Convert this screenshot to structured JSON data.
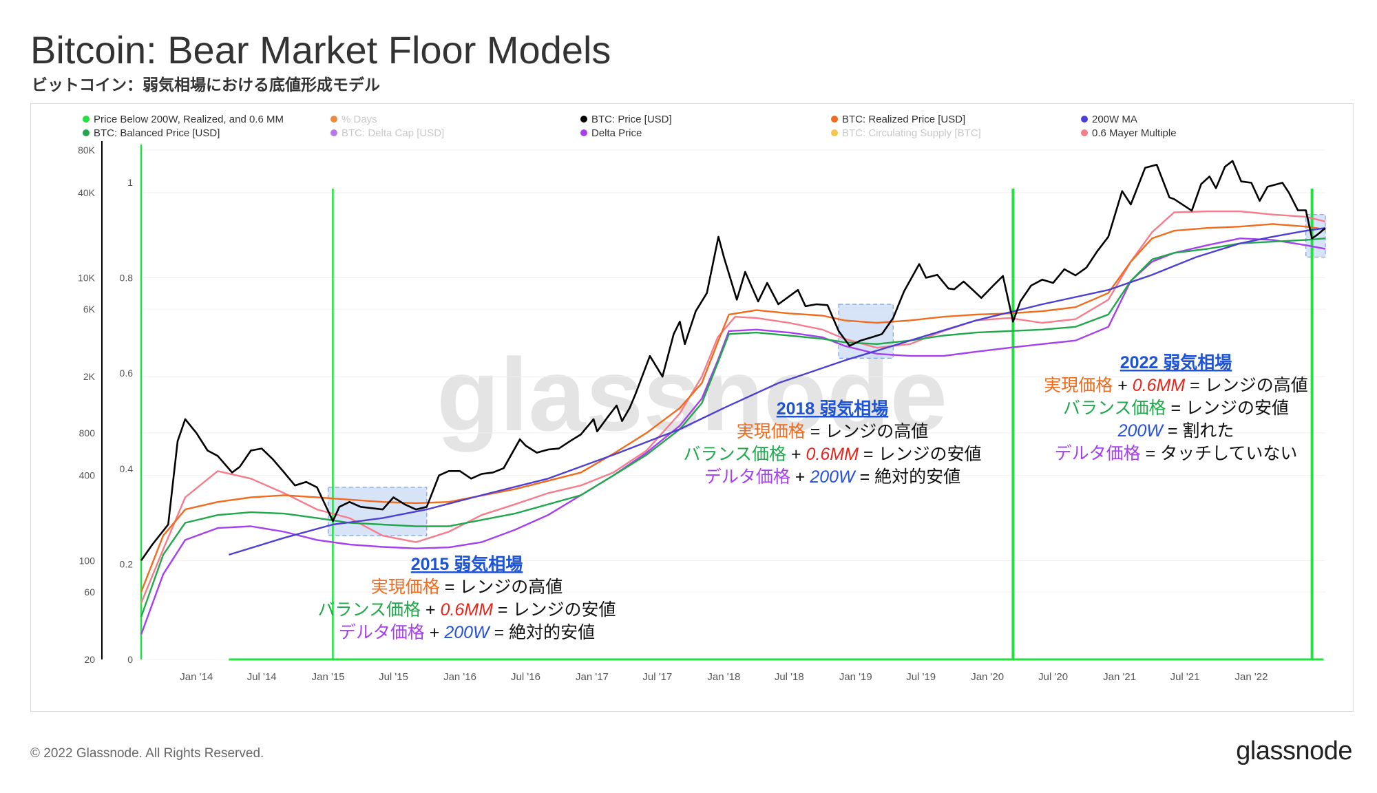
{
  "header": {
    "title": "Bitcoin: Bear Market Floor Models",
    "subtitle": "ビットコイン：弱気相場における底値形成モデル"
  },
  "footer": {
    "copyright": "© 2022 Glassnode. All Rights Reserved.",
    "brand": "glassnode"
  },
  "watermark": "glassnode",
  "colors": {
    "price": "#000000",
    "realized": "#f26a1b",
    "balanced": "#1fa84a",
    "ma200w": "#4b3fd6",
    "delta": "#a53ff0",
    "mayer06": "#f77b8a",
    "signal": "#22e041",
    "days": "#f0883e",
    "delta_cap": "#b77be6",
    "supply": "#f5c64c",
    "highlight": "#c9dbf5",
    "red_text": "#e8241a",
    "blue_text": "#2450e0",
    "head_blue": "#1e53d6"
  },
  "legend": [
    {
      "label": "Price Below 200W, Realized, and 0.6 MM",
      "color": "#22e041",
      "muted": false
    },
    {
      "label": "% Days",
      "color": "#f0883e",
      "muted": true
    },
    {
      "label": "BTC: Price [USD]",
      "color": "#000000",
      "muted": false
    },
    {
      "label": "BTC: Realized Price [USD]",
      "color": "#f26a1b",
      "muted": false
    },
    {
      "label": "200W MA",
      "color": "#4b3fd6",
      "muted": false
    },
    {
      "label": "BTC: Balanced Price [USD]",
      "color": "#1fa84a",
      "muted": false
    },
    {
      "label": "BTC: Delta Cap [USD]",
      "color": "#b77be6",
      "muted": true
    },
    {
      "label": "Delta Price",
      "color": "#a53ff0",
      "muted": false
    },
    {
      "label": "BTC: Circulating Supply [BTC]",
      "color": "#f5c64c",
      "muted": true
    },
    {
      "label": "0.6 Mayer Multiple",
      "color": "#f77b8a",
      "muted": false
    }
  ],
  "chart_data": {
    "type": "line",
    "y_scale": "log",
    "ylim": [
      20,
      80000
    ],
    "price_ticks": [
      "80K",
      "40K",
      "10K",
      "6K",
      "2K",
      "800",
      "400",
      "100",
      "60",
      "20"
    ],
    "price_tick_values": [
      80000,
      40000,
      10000,
      6000,
      2000,
      800,
      400,
      100,
      60,
      20
    ],
    "ratio_ticks": [
      "1",
      "0.8",
      "0.6",
      "0.4",
      "0.2",
      "0"
    ],
    "ratio_tick_values": [
      1,
      0.8,
      0.6,
      0.4,
      0.2,
      0
    ],
    "x_ticks": [
      "Jan '14",
      "Jul '14",
      "Jan '15",
      "Jul '15",
      "Jan '16",
      "Jul '16",
      "Jan '17",
      "Jul '17",
      "Jan '18",
      "Jul '18",
      "Jan '19",
      "Jul '19",
      "Jan '20",
      "Jul '20",
      "Jan '21",
      "Jul '21",
      "Jan '22"
    ],
    "x_tick_dates": [
      "2014-01-01",
      "2014-07-01",
      "2015-01-01",
      "2015-07-01",
      "2016-01-01",
      "2016-07-01",
      "2017-01-01",
      "2017-07-01",
      "2018-01-01",
      "2018-07-01",
      "2019-01-01",
      "2019-07-01",
      "2020-01-01",
      "2020-07-01",
      "2021-01-01",
      "2021-07-01",
      "2022-01-01"
    ],
    "x_range": [
      "2013-08-01",
      "2022-07-25"
    ],
    "signal_dates": [
      "2013-08-01",
      "2015-01-14",
      "2020-03-12",
      "2022-06-18"
    ],
    "highlight_zones": [
      {
        "x": [
          "2015-01-01",
          "2015-10-01"
        ],
        "y": [
          150,
          330
        ]
      },
      {
        "x": [
          "2018-11-15",
          "2019-04-15"
        ],
        "y": [
          2700,
          6500
        ]
      },
      {
        "x": [
          "2022-06-01",
          "2022-07-25"
        ],
        "y": [
          14000,
          28000
        ]
      }
    ],
    "series": [
      {
        "name": "BTC: Price [USD]",
        "key": "price",
        "x": [
          "2013-08-01",
          "2013-09-01",
          "2013-10-15",
          "2013-11-10",
          "2013-12-01",
          "2014-01-01",
          "2014-02-01",
          "2014-03-01",
          "2014-04-10",
          "2014-05-01",
          "2014-06-01",
          "2014-07-01",
          "2014-08-01",
          "2014-09-01",
          "2014-10-01",
          "2014-11-01",
          "2014-12-01",
          "2015-01-14",
          "2015-02-01",
          "2015-03-01",
          "2015-04-01",
          "2015-05-01",
          "2015-06-01",
          "2015-07-01",
          "2015-08-01",
          "2015-09-01",
          "2015-10-01",
          "2015-11-04",
          "2015-12-01",
          "2016-01-01",
          "2016-02-01",
          "2016-03-01",
          "2016-04-01",
          "2016-05-01",
          "2016-06-15",
          "2016-07-01",
          "2016-08-01",
          "2016-09-01",
          "2016-10-01",
          "2016-11-01",
          "2016-12-01",
          "2017-01-05",
          "2017-01-15",
          "2017-02-15",
          "2017-03-10",
          "2017-03-25",
          "2017-04-15",
          "2017-05-01",
          "2017-06-10",
          "2017-07-15",
          "2017-08-15",
          "2017-09-01",
          "2017-09-15",
          "2017-10-15",
          "2017-11-15",
          "2017-12-17",
          "2018-01-01",
          "2018-02-06",
          "2018-03-01",
          "2018-04-06",
          "2018-05-01",
          "2018-06-01",
          "2018-07-25",
          "2018-08-15",
          "2018-09-15",
          "2018-10-15",
          "2018-11-15",
          "2018-12-15",
          "2019-01-15",
          "2019-02-15",
          "2019-03-15",
          "2019-04-15",
          "2019-05-15",
          "2019-06-26",
          "2019-07-15",
          "2019-08-15",
          "2019-09-15",
          "2019-10-01",
          "2019-10-27",
          "2019-11-15",
          "2019-12-15",
          "2020-01-15",
          "2020-02-13",
          "2020-03-12",
          "2020-04-01",
          "2020-05-01",
          "2020-06-01",
          "2020-07-01",
          "2020-08-01",
          "2020-09-01",
          "2020-10-01",
          "2020-11-01",
          "2020-12-01",
          "2021-01-08",
          "2021-02-01",
          "2021-03-13",
          "2021-04-14",
          "2021-05-19",
          "2021-06-01",
          "2021-07-20",
          "2021-08-15",
          "2021-09-07",
          "2021-09-25",
          "2021-10-20",
          "2021-11-10",
          "2021-12-04",
          "2022-01-01",
          "2022-01-24",
          "2022-02-15",
          "2022-03-28",
          "2022-04-15",
          "2022-05-10",
          "2022-06-01",
          "2022-06-18",
          "2022-07-01",
          "2022-07-25"
        ],
        "values": [
          100,
          130,
          180,
          700,
          1000,
          800,
          600,
          550,
          420,
          460,
          600,
          620,
          520,
          420,
          340,
          360,
          330,
          190,
          240,
          260,
          240,
          235,
          230,
          280,
          250,
          230,
          240,
          400,
          430,
          430,
          380,
          410,
          420,
          450,
          720,
          650,
          580,
          610,
          620,
          700,
          780,
          1000,
          820,
          1050,
          1250,
          970,
          1200,
          1500,
          2800,
          2000,
          4000,
          4900,
          3400,
          5800,
          7800,
          19500,
          14000,
          7000,
          11000,
          6800,
          9200,
          6500,
          8200,
          6300,
          6500,
          6400,
          4200,
          3300,
          3600,
          3800,
          4000,
          5200,
          8000,
          12500,
          10000,
          10500,
          8400,
          8300,
          9400,
          8500,
          7200,
          8700,
          10300,
          4900,
          6800,
          8800,
          9700,
          9200,
          11500,
          10400,
          11800,
          15500,
          19500,
          41000,
          33000,
          60000,
          63000,
          37000,
          36000,
          29800,
          46000,
          52000,
          43000,
          61000,
          67000,
          48000,
          47000,
          35000,
          44000,
          47000,
          40000,
          30000,
          30000,
          19000,
          20000,
          22500
        ]
      },
      {
        "name": "BTC: Realized Price [USD]",
        "key": "realized",
        "x": [
          "2013-08-01",
          "2013-10-01",
          "2013-12-01",
          "2014-03-01",
          "2014-06-01",
          "2014-09-01",
          "2014-12-01",
          "2015-03-01",
          "2015-06-01",
          "2015-09-01",
          "2015-12-01",
          "2016-06-01",
          "2016-12-01",
          "2017-03-01",
          "2017-06-01",
          "2017-09-01",
          "2017-11-01",
          "2017-12-15",
          "2018-01-15",
          "2018-04-01",
          "2018-07-01",
          "2018-10-01",
          "2018-12-01",
          "2019-03-01",
          "2019-06-01",
          "2019-09-01",
          "2019-12-01",
          "2020-03-01",
          "2020-06-01",
          "2020-09-01",
          "2020-12-01",
          "2021-02-01",
          "2021-04-01",
          "2021-06-01",
          "2021-09-01",
          "2021-12-01",
          "2022-03-01",
          "2022-06-01",
          "2022-07-25"
        ],
        "values": [
          60,
          150,
          230,
          260,
          280,
          290,
          280,
          270,
          260,
          255,
          260,
          320,
          420,
          570,
          800,
          1200,
          1800,
          3500,
          5500,
          5900,
          5600,
          5400,
          5000,
          4800,
          5000,
          5300,
          5500,
          5600,
          5800,
          6200,
          7800,
          13000,
          19000,
          21500,
          22500,
          23000,
          24000,
          23000,
          22000
        ]
      },
      {
        "name": "BTC: Balanced Price [USD]",
        "key": "balanced",
        "x": [
          "2013-08-01",
          "2013-10-01",
          "2013-12-01",
          "2014-03-01",
          "2014-06-01",
          "2014-09-01",
          "2014-12-01",
          "2015-03-01",
          "2015-06-01",
          "2015-09-01",
          "2015-12-01",
          "2016-06-01",
          "2016-12-01",
          "2017-03-01",
          "2017-06-01",
          "2017-09-01",
          "2017-11-01",
          "2017-12-15",
          "2018-01-15",
          "2018-04-01",
          "2018-07-01",
          "2018-10-01",
          "2018-12-01",
          "2019-03-01",
          "2019-06-01",
          "2019-09-01",
          "2019-12-01",
          "2020-03-01",
          "2020-06-01",
          "2020-09-01",
          "2020-12-01",
          "2021-02-01",
          "2021-04-01",
          "2021-06-01",
          "2021-09-01",
          "2021-12-01",
          "2022-03-01",
          "2022-06-01",
          "2022-07-25"
        ],
        "values": [
          40,
          110,
          185,
          210,
          220,
          215,
          200,
          185,
          180,
          175,
          175,
          215,
          290,
          400,
          560,
          850,
          1300,
          2500,
          4000,
          4100,
          3900,
          3700,
          3500,
          3400,
          3600,
          3900,
          4100,
          4200,
          4300,
          4500,
          5500,
          9500,
          13500,
          15000,
          16000,
          17500,
          18000,
          18500,
          19000
        ]
      },
      {
        "name": "200W MA",
        "key": "ma200w",
        "x": [
          "2014-04-01",
          "2014-09-01",
          "2015-01-14",
          "2015-06-01",
          "2015-10-01",
          "2016-03-01",
          "2016-09-01",
          "2017-03-01",
          "2017-09-01",
          "2018-01-01",
          "2018-06-01",
          "2018-12-01",
          "2019-06-01",
          "2019-12-01",
          "2020-06-01",
          "2020-12-01",
          "2021-04-01",
          "2021-08-01",
          "2021-12-01",
          "2022-03-01",
          "2022-06-01",
          "2022-07-25"
        ],
        "values": [
          110,
          145,
          180,
          200,
          230,
          290,
          380,
          560,
          850,
          1200,
          1800,
          2600,
          3600,
          5000,
          6500,
          8200,
          10500,
          14000,
          17500,
          19500,
          21500,
          22500
        ]
      },
      {
        "name": "Delta Price",
        "key": "delta",
        "x": [
          "2013-08-01",
          "2013-10-01",
          "2013-12-01",
          "2014-03-01",
          "2014-06-01",
          "2014-09-01",
          "2014-12-01",
          "2015-03-01",
          "2015-06-01",
          "2015-09-01",
          "2015-12-01",
          "2016-03-01",
          "2016-06-01",
          "2016-09-01",
          "2016-12-01",
          "2017-03-01",
          "2017-06-01",
          "2017-09-01",
          "2017-11-01",
          "2017-12-15",
          "2018-01-15",
          "2018-04-01",
          "2018-07-01",
          "2018-10-01",
          "2018-12-01",
          "2019-03-01",
          "2019-06-01",
          "2019-09-01",
          "2019-12-01",
          "2020-03-01",
          "2020-06-01",
          "2020-09-01",
          "2020-12-01",
          "2021-02-01",
          "2021-04-01",
          "2021-06-01",
          "2021-09-01",
          "2021-12-01",
          "2022-03-01",
          "2022-06-01",
          "2022-07-25"
        ],
        "values": [
          30,
          80,
          140,
          170,
          175,
          160,
          140,
          130,
          125,
          122,
          124,
          135,
          165,
          210,
          290,
          400,
          580,
          900,
          1400,
          2600,
          4200,
          4300,
          4100,
          3800,
          3300,
          2900,
          2800,
          2800,
          3000,
          3200,
          3400,
          3600,
          4500,
          9500,
          13000,
          15000,
          17000,
          19000,
          18500,
          17000,
          16000
        ]
      },
      {
        "name": "0.6 Mayer Multiple",
        "key": "mayer06",
        "x": [
          "2013-08-01",
          "2013-10-01",
          "2013-12-01",
          "2014-03-01",
          "2014-06-01",
          "2014-09-01",
          "2014-12-01",
          "2015-03-01",
          "2015-06-01",
          "2015-09-01",
          "2015-12-01",
          "2016-03-01",
          "2016-06-01",
          "2016-09-01",
          "2016-12-01",
          "2017-03-01",
          "2017-06-01",
          "2017-09-01",
          "2017-11-01",
          "2017-12-15",
          "2018-02-01",
          "2018-04-01",
          "2018-07-01",
          "2018-10-01",
          "2018-12-01",
          "2019-03-01",
          "2019-06-01",
          "2019-09-01",
          "2019-12-01",
          "2020-03-01",
          "2020-06-01",
          "2020-09-01",
          "2020-12-01",
          "2021-02-01",
          "2021-04-01",
          "2021-06-01",
          "2021-09-01",
          "2021-12-01",
          "2022-03-01",
          "2022-06-01",
          "2022-07-25"
        ],
        "values": [
          50,
          120,
          280,
          430,
          380,
          300,
          230,
          200,
          150,
          135,
          160,
          210,
          250,
          300,
          340,
          420,
          600,
          1100,
          2000,
          3800,
          5300,
          5200,
          4800,
          4300,
          3700,
          3200,
          3400,
          4200,
          5000,
          5200,
          4800,
          5100,
          7000,
          13000,
          21000,
          29000,
          29500,
          29500,
          28000,
          27000,
          25000
        ]
      }
    ]
  },
  "annotations": [
    {
      "heading": "2015 弱気相場",
      "lines": [
        [
          {
            "t": "実現価格",
            "c": "realized"
          },
          {
            "t": " = レンジの高値",
            "c": "dark"
          }
        ],
        [
          {
            "t": "バランス価格",
            "c": "balanced"
          },
          {
            "t": " + ",
            "c": "dark"
          },
          {
            "t": "0.6MM",
            "c": "red_text",
            "italic": true
          },
          {
            "t": " = レンジの安値",
            "c": "dark"
          }
        ],
        [
          {
            "t": "デルタ価格",
            "c": "delta"
          },
          {
            "t": " + ",
            "c": "dark"
          },
          {
            "t": "200W",
            "c": "blue_text",
            "italic": true
          },
          {
            "t": " = 絶対的安値",
            "c": "dark"
          }
        ]
      ]
    },
    {
      "heading": "2018 弱気相場",
      "lines": [
        [
          {
            "t": "実現価格",
            "c": "realized"
          },
          {
            "t": " = レンジの高値",
            "c": "dark"
          }
        ],
        [
          {
            "t": "バランス価格",
            "c": "balanced"
          },
          {
            "t": " + ",
            "c": "dark"
          },
          {
            "t": "0.6MM",
            "c": "red_text",
            "italic": true
          },
          {
            "t": " = レンジの安値",
            "c": "dark"
          }
        ],
        [
          {
            "t": "デルタ価格",
            "c": "delta"
          },
          {
            "t": " + ",
            "c": "dark"
          },
          {
            "t": "200W",
            "c": "blue_text",
            "italic": true
          },
          {
            "t": " = 絶対的安値",
            "c": "dark"
          }
        ]
      ]
    },
    {
      "heading": "2022 弱気相場",
      "lines": [
        [
          {
            "t": "実現価格",
            "c": "realized"
          },
          {
            "t": " + ",
            "c": "dark"
          },
          {
            "t": "0.6MM",
            "c": "red_text",
            "italic": true
          },
          {
            "t": " = レンジの高値",
            "c": "dark"
          }
        ],
        [
          {
            "t": "バランス価格",
            "c": "balanced"
          },
          {
            "t": " = レンジの安値",
            "c": "dark"
          }
        ],
        [
          {
            "t": "200W",
            "c": "blue_text",
            "italic": true
          },
          {
            "t": " = 割れた",
            "c": "dark"
          }
        ],
        [
          {
            "t": "デルタ価格",
            "c": "delta"
          },
          {
            "t": " = タッチしていない",
            "c": "dark"
          }
        ]
      ]
    }
  ]
}
